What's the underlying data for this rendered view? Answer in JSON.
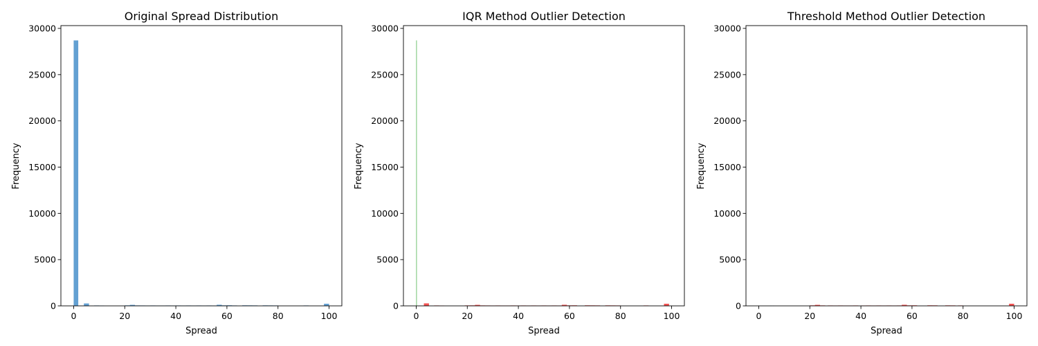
{
  "chart_data": [
    {
      "type": "bar",
      "title": "Original Spread Distribution",
      "xlabel": "Spread",
      "ylabel": "Frequency",
      "xlim": [
        -5,
        105
      ],
      "ylim": [
        0,
        30300
      ],
      "xticks": [
        "0",
        "20",
        "40",
        "60",
        "80",
        "100"
      ],
      "yticks": [
        "0",
        "5000",
        "10000",
        "15000",
        "20000",
        "25000",
        "30000"
      ],
      "series": [
        {
          "color": "#5b9bd0",
          "bins": [
            {
              "x0": 0,
              "x1": 1.8,
              "count": 28700
            },
            {
              "x0": 4,
              "x1": 6,
              "count": 260
            },
            {
              "x0": 8,
              "x1": 10,
              "count": 45
            },
            {
              "x0": 10,
              "x1": 12,
              "count": 35
            },
            {
              "x0": 20,
              "x1": 22,
              "count": 55
            },
            {
              "x0": 22,
              "x1": 24,
              "count": 110
            },
            {
              "x0": 24,
              "x1": 26,
              "count": 50
            },
            {
              "x0": 26,
              "x1": 28,
              "count": 45
            },
            {
              "x0": 28,
              "x1": 30,
              "count": 40
            },
            {
              "x0": 30,
              "x1": 32,
              "count": 45
            },
            {
              "x0": 32,
              "x1": 34,
              "count": 40
            },
            {
              "x0": 34,
              "x1": 36,
              "count": 40
            },
            {
              "x0": 36,
              "x1": 38,
              "count": 45
            },
            {
              "x0": 38,
              "x1": 40,
              "count": 40
            },
            {
              "x0": 40,
              "x1": 42,
              "count": 45
            },
            {
              "x0": 42,
              "x1": 44,
              "count": 40
            },
            {
              "x0": 44,
              "x1": 46,
              "count": 45
            },
            {
              "x0": 46,
              "x1": 48,
              "count": 40
            },
            {
              "x0": 48,
              "x1": 50,
              "count": 45
            },
            {
              "x0": 50,
              "x1": 52,
              "count": 40
            },
            {
              "x0": 52,
              "x1": 54,
              "count": 45
            },
            {
              "x0": 54,
              "x1": 56,
              "count": 40
            },
            {
              "x0": 56,
              "x1": 58,
              "count": 120
            },
            {
              "x0": 58,
              "x1": 60,
              "count": 55
            },
            {
              "x0": 60,
              "x1": 62,
              "count": 65
            },
            {
              "x0": 62,
              "x1": 64,
              "count": 45
            },
            {
              "x0": 66,
              "x1": 68,
              "count": 60
            },
            {
              "x0": 68,
              "x1": 70,
              "count": 55
            },
            {
              "x0": 70,
              "x1": 72,
              "count": 50
            },
            {
              "x0": 74,
              "x1": 76,
              "count": 55
            },
            {
              "x0": 76,
              "x1": 78,
              "count": 50
            },
            {
              "x0": 78,
              "x1": 80,
              "count": 45
            },
            {
              "x0": 90,
              "x1": 92,
              "count": 45
            },
            {
              "x0": 98,
              "x1": 100,
              "count": 230
            }
          ]
        }
      ]
    },
    {
      "type": "bar",
      "title": "IQR Method Outlier Detection",
      "xlabel": "Spread",
      "ylabel": "Frequency",
      "xlim": [
        -5,
        105
      ],
      "ylim": [
        0,
        30300
      ],
      "xticks": [
        "0",
        "20",
        "40",
        "60",
        "80",
        "100"
      ],
      "yticks": [
        "0",
        "5000",
        "10000",
        "15000",
        "20000",
        "25000",
        "30000"
      ],
      "series": [
        {
          "color": "#5cb85c",
          "bins": [
            {
              "x0": 0,
              "x1": 0.25,
              "count": 28700
            }
          ]
        },
        {
          "color": "#f24a4a",
          "bins": [
            {
              "x0": 3,
              "x1": 5,
              "count": 270
            },
            {
              "x0": 7,
              "x1": 9,
              "count": 45
            },
            {
              "x0": 9,
              "x1": 11,
              "count": 35
            },
            {
              "x0": 19,
              "x1": 21,
              "count": 50
            },
            {
              "x0": 21,
              "x1": 23,
              "count": 55
            },
            {
              "x0": 23,
              "x1": 25,
              "count": 110
            },
            {
              "x0": 25,
              "x1": 27,
              "count": 50
            },
            {
              "x0": 27,
              "x1": 29,
              "count": 45
            },
            {
              "x0": 29,
              "x1": 31,
              "count": 40
            },
            {
              "x0": 31,
              "x1": 33,
              "count": 45
            },
            {
              "x0": 33,
              "x1": 35,
              "count": 40
            },
            {
              "x0": 35,
              "x1": 37,
              "count": 40
            },
            {
              "x0": 37,
              "x1": 39,
              "count": 45
            },
            {
              "x0": 39,
              "x1": 41,
              "count": 40
            },
            {
              "x0": 41,
              "x1": 43,
              "count": 45
            },
            {
              "x0": 43,
              "x1": 45,
              "count": 40
            },
            {
              "x0": 45,
              "x1": 47,
              "count": 45
            },
            {
              "x0": 47,
              "x1": 49,
              "count": 40
            },
            {
              "x0": 49,
              "x1": 51,
              "count": 45
            },
            {
              "x0": 51,
              "x1": 53,
              "count": 40
            },
            {
              "x0": 53,
              "x1": 55,
              "count": 45
            },
            {
              "x0": 55,
              "x1": 57,
              "count": 40
            },
            {
              "x0": 57,
              "x1": 59,
              "count": 120
            },
            {
              "x0": 59,
              "x1": 61,
              "count": 55
            },
            {
              "x0": 61,
              "x1": 63,
              "count": 60
            },
            {
              "x0": 66,
              "x1": 68,
              "count": 60
            },
            {
              "x0": 68,
              "x1": 70,
              "count": 55
            },
            {
              "x0": 70,
              "x1": 72,
              "count": 50
            },
            {
              "x0": 74,
              "x1": 76,
              "count": 55
            },
            {
              "x0": 76,
              "x1": 78,
              "count": 50
            },
            {
              "x0": 78,
              "x1": 80,
              "count": 45
            },
            {
              "x0": 89,
              "x1": 91,
              "count": 45
            },
            {
              "x0": 97,
              "x1": 99,
              "count": 230
            }
          ]
        }
      ]
    },
    {
      "type": "bar",
      "title": "Threshold Method Outlier Detection",
      "xlabel": "Spread",
      "ylabel": "Frequency",
      "xlim": [
        -5,
        105
      ],
      "ylim": [
        0,
        30300
      ],
      "xticks": [
        "0",
        "20",
        "40",
        "60",
        "80",
        "100"
      ],
      "yticks": [
        "0",
        "5000",
        "10000",
        "15000",
        "20000",
        "25000",
        "30000"
      ],
      "series": [
        {
          "color": "#5b9bd0",
          "bins": [
            {
              "x0": 4.5,
              "x1": 5,
              "count": 30
            },
            {
              "x0": 5.5,
              "x1": 6,
              "count": 25
            }
          ]
        },
        {
          "color": "#f24a4a",
          "bins": [
            {
              "x0": 20,
              "x1": 22,
              "count": 55
            },
            {
              "x0": 22,
              "x1": 24,
              "count": 110
            },
            {
              "x0": 24,
              "x1": 26,
              "count": 50
            },
            {
              "x0": 27,
              "x1": 29,
              "count": 45
            },
            {
              "x0": 29,
              "x1": 31,
              "count": 40
            },
            {
              "x0": 31,
              "x1": 33,
              "count": 45
            },
            {
              "x0": 33,
              "x1": 35,
              "count": 40
            },
            {
              "x0": 35,
              "x1": 37,
              "count": 40
            },
            {
              "x0": 37,
              "x1": 39,
              "count": 45
            },
            {
              "x0": 40,
              "x1": 42,
              "count": 40
            },
            {
              "x0": 42,
              "x1": 44,
              "count": 45
            },
            {
              "x0": 44,
              "x1": 46,
              "count": 40
            },
            {
              "x0": 46,
              "x1": 48,
              "count": 45
            },
            {
              "x0": 48,
              "x1": 50,
              "count": 40
            },
            {
              "x0": 50,
              "x1": 52,
              "count": 45
            },
            {
              "x0": 52,
              "x1": 54,
              "count": 40
            },
            {
              "x0": 54,
              "x1": 56,
              "count": 45
            },
            {
              "x0": 56,
              "x1": 58,
              "count": 120
            },
            {
              "x0": 58,
              "x1": 60,
              "count": 55
            },
            {
              "x0": 60,
              "x1": 62,
              "count": 60
            },
            {
              "x0": 66,
              "x1": 68,
              "count": 60
            },
            {
              "x0": 68,
              "x1": 70,
              "count": 55
            },
            {
              "x0": 73,
              "x1": 75,
              "count": 55
            },
            {
              "x0": 75,
              "x1": 77,
              "count": 50
            },
            {
              "x0": 78,
              "x1": 80,
              "count": 45
            },
            {
              "x0": 98,
              "x1": 100,
              "count": 230
            }
          ]
        }
      ]
    }
  ]
}
